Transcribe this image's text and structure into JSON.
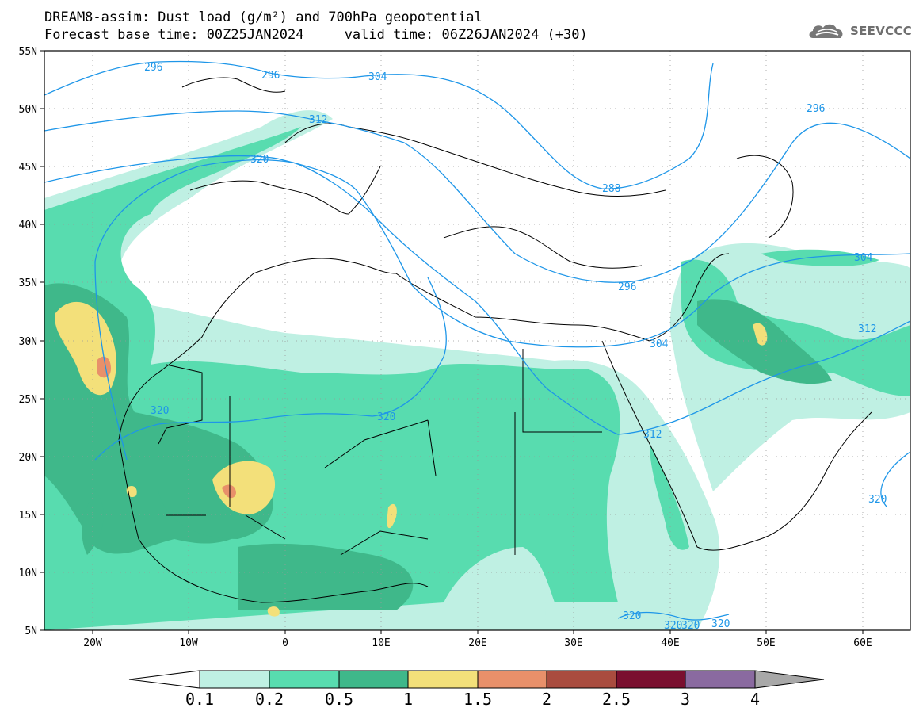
{
  "header": {
    "title_line1": "DREAM8-assim: Dust load (g/m²) and 700hPa geopotential",
    "title_line2": "Forecast base time: 00Z25JAN2024     valid time: 06Z26JAN2024 (+30)"
  },
  "logo": {
    "text": "SEEVCCC",
    "icon": "cloud-icon"
  },
  "axes": {
    "lat_labels": [
      "55N",
      "50N",
      "45N",
      "40N",
      "35N",
      "30N",
      "25N",
      "20N",
      "15N",
      "10N",
      "5N"
    ],
    "lon_labels": [
      "20W",
      "10W",
      "0",
      "10E",
      "20E",
      "30E",
      "40E",
      "50E",
      "60E"
    ]
  },
  "contour_labels": [
    "296",
    "296",
    "304",
    "312",
    "320",
    "288",
    "296",
    "304",
    "296",
    "304",
    "312",
    "320",
    "320",
    "312",
    "320",
    "320",
    "320",
    "320",
    "320"
  ],
  "colorbar": {
    "labels": [
      "0.1",
      "0.2",
      "0.5",
      "1",
      "1.5",
      "2",
      "2.5",
      "3",
      "4"
    ],
    "colors": [
      "#bff0e3",
      "#58dcaf",
      "#3fb88a",
      "#f3e07a",
      "#e8906a",
      "#a94c3f",
      "#7a0f2f",
      "#8a6aa0",
      "#a8a8a8"
    ]
  },
  "chart_data": {
    "type": "heatmap",
    "title": "DREAM8-assim: Dust load (g/m²) and 700hPa geopotential",
    "lon_range": [
      -25,
      65
    ],
    "lat_range": [
      5,
      55
    ],
    "dust_levels": [
      0.1,
      0.2,
      0.5,
      1,
      1.5,
      2,
      2.5,
      3,
      4
    ],
    "geopotential_contour_values": [
      288,
      296,
      304,
      312,
      320
    ]
  }
}
